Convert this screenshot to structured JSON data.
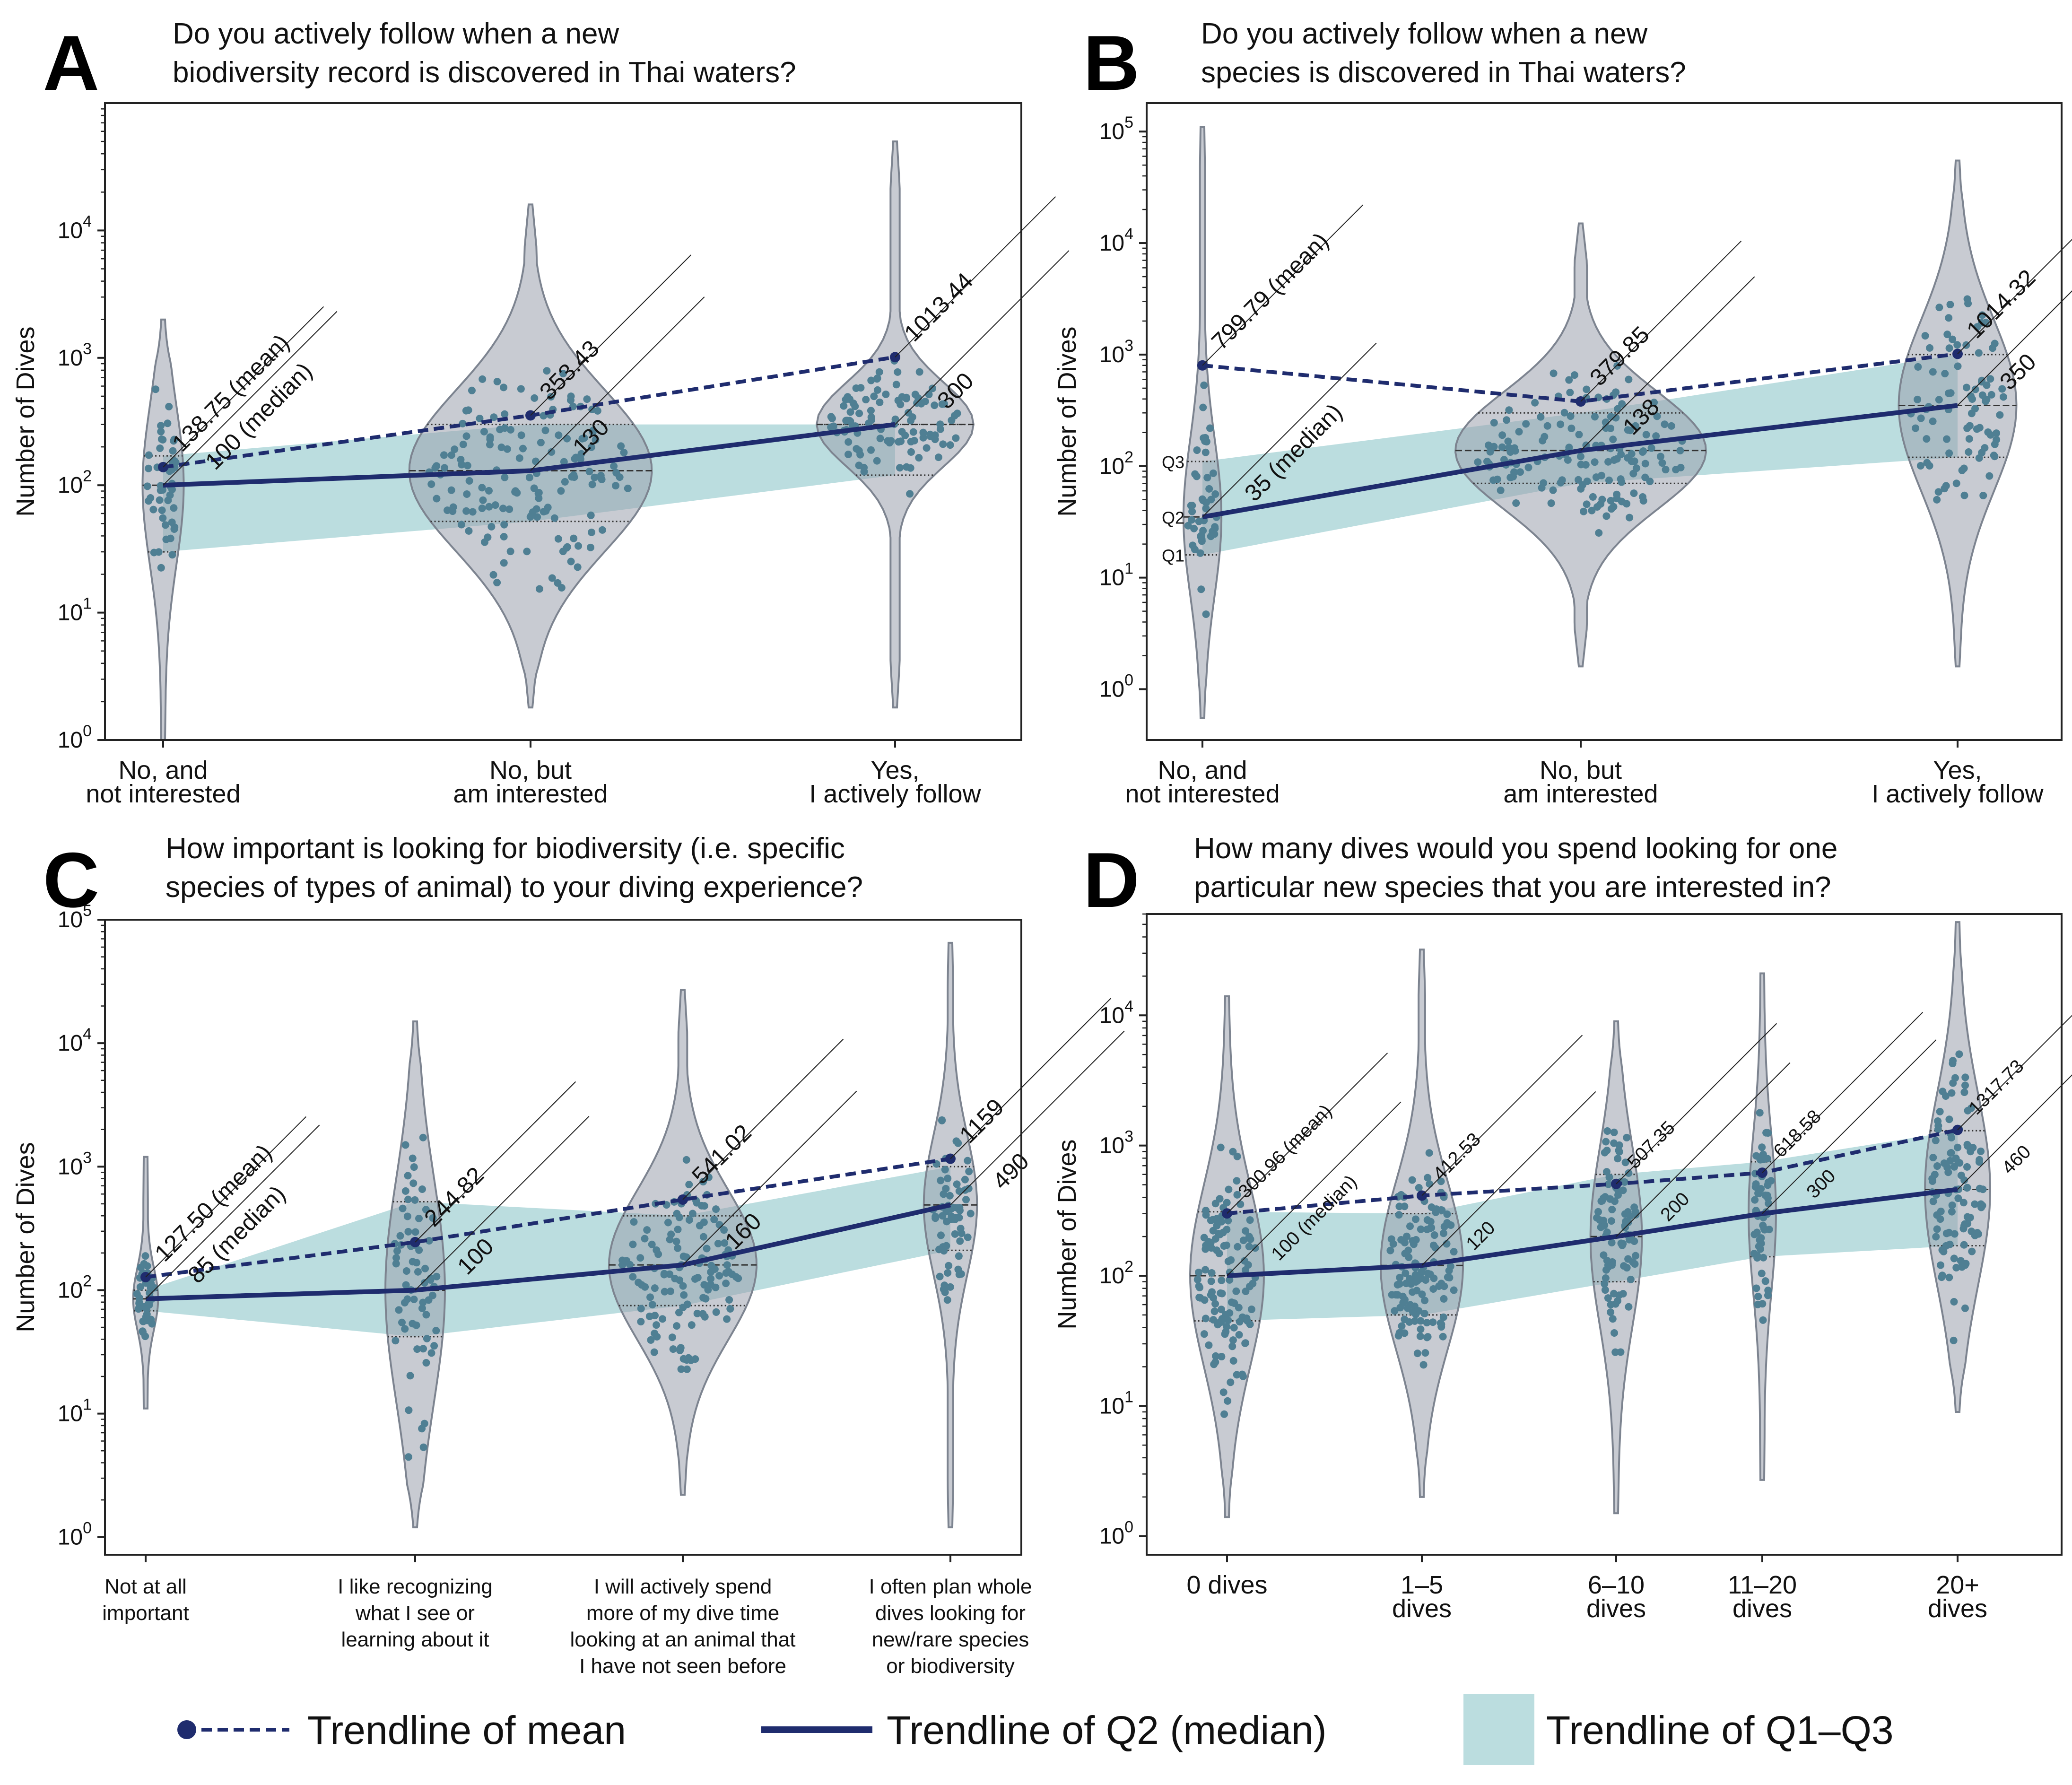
{
  "colors": {
    "violin_fill": "#9aa1ad",
    "violin_stroke": "#7d8490",
    "band_fill": "#a8d3d6",
    "dot": "#4f7f93",
    "outlier": "#111111",
    "mean_line": "#1f2c6e",
    "median_line": "#1f2c6e",
    "axis": "#222222"
  },
  "legend": {
    "mean": "Trendline of mean",
    "median": "Trendline of Q2 (median)",
    "q1q3": "Trendline of Q1–Q3"
  },
  "chart_data": [
    {
      "panel": "A",
      "type": "violin",
      "title_lines": [
        "Do you actively follow when a new",
        "biodiversity record is discovered in Thai waters?"
      ],
      "ylabel": "Number of Dives",
      "yscale": "log",
      "ylim": [
        1,
        100000
      ],
      "yticks": [
        "10^0",
        "10^1",
        "10^2",
        "10^3",
        "10^4"
      ],
      "categories": [
        [
          "No, and",
          "not interested"
        ],
        [
          "No, but",
          "am interested"
        ],
        [
          "Yes,",
          "I actively follow"
        ]
      ],
      "mean": [
        138.75,
        353.43,
        1013.44
      ],
      "median": [
        100,
        130,
        300
      ],
      "q1": [
        30,
        52,
        120
      ],
      "q3": [
        170,
        300,
        300
      ],
      "mean_labels": [
        "138.75 (mean)",
        "353.43",
        "1013.44"
      ],
      "median_labels": [
        "100 (median)",
        "130",
        "300"
      ],
      "range": [
        [
          1,
          2000
        ],
        [
          1.8,
          16000
        ],
        [
          1.8,
          50000
        ]
      ],
      "widths": [
        0.03,
        0.5,
        0.3
      ]
    },
    {
      "panel": "B",
      "type": "violin",
      "title_lines": [
        "Do you actively follow when a new",
        "species is discovered in Thai waters?"
      ],
      "ylabel": "Number of Dives",
      "yscale": "log",
      "ylim": [
        0.35,
        180000
      ],
      "yticks": [
        "10^0",
        "10^1",
        "10^2",
        "10^3",
        "10^4",
        "10^5"
      ],
      "categories": [
        [
          "No, and",
          "not interested"
        ],
        [
          "No, but",
          "am interested"
        ],
        [
          "Yes,",
          "I actively follow"
        ]
      ],
      "mean": [
        799.79,
        379.85,
        1014.32
      ],
      "median": [
        35,
        138,
        350
      ],
      "q1": [
        16,
        70,
        120
      ],
      "q3": [
        110,
        300,
        1000
      ],
      "mean_labels": [
        "799.79 (mean)",
        "379.85",
        "1014.32"
      ],
      "median_labels": [
        "35 (median)",
        "138",
        "350"
      ],
      "range": [
        [
          0.55,
          110000
        ],
        [
          1.6,
          15000
        ],
        [
          1.6,
          55000
        ]
      ],
      "widths": [
        0.02,
        0.5,
        0.2
      ],
      "quartile_marks": [
        "Q3",
        "Q2",
        "Q1"
      ]
    },
    {
      "panel": "C",
      "type": "violin",
      "title_lines": [
        "How important is looking for biodiversity (i.e. specific",
        "species of types of animal) to your diving experience?"
      ],
      "ylabel": "Number of Dives",
      "yscale": "log",
      "ylim": [
        0.72,
        100000
      ],
      "yticks": [
        "10^0",
        "10^1",
        "10^2",
        "10^3",
        "10^4",
        "10^5"
      ],
      "categories": [
        [
          "Not at all",
          "important"
        ],
        [
          "I like recognizing",
          "what I see or",
          "learning about it"
        ],
        [
          "I will actively spend",
          "more of my dive time",
          "looking at an animal that",
          "I have not seen before"
        ],
        [
          "I often plan whole",
          "dives looking for",
          "new/rare species",
          "or biodiversity"
        ]
      ],
      "mean": [
        127.5,
        244.82,
        541.02,
        1159
      ],
      "median": [
        85,
        100,
        160,
        490
      ],
      "q1": [
        68,
        42,
        75,
        210
      ],
      "q3": [
        100,
        520,
        400,
        1000
      ],
      "mean_labels": [
        "127.50 (mean)",
        "244.82",
        "541.02",
        "1159"
      ],
      "median_labels": [
        "85 (median)",
        "100",
        "160",
        "490"
      ],
      "range": [
        [
          11,
          1200
        ],
        [
          1.2,
          15000
        ],
        [
          2.2,
          27000
        ],
        [
          1.2,
          65000
        ]
      ],
      "widths": [
        0.01,
        0.12,
        0.4,
        0.1
      ]
    },
    {
      "panel": "D",
      "type": "violin",
      "title_lines": [
        "How many dives would you spend looking for one",
        "particular new species that you are interested in?"
      ],
      "ylabel": "Number of Dives",
      "yscale": "log",
      "ylim": [
        0.72,
        60000
      ],
      "yticks": [
        "10^0",
        "10^1",
        "10^2",
        "10^3",
        "10^4"
      ],
      "categories": [
        [
          "0 dives"
        ],
        [
          "1–5",
          "dives"
        ],
        [
          "6–10",
          "dives"
        ],
        [
          "11–20",
          "dives"
        ],
        [
          "20+",
          "dives"
        ]
      ],
      "mean": [
        300.96,
        412.53,
        507.35,
        618.58,
        1317.73
      ],
      "median": [
        100,
        120,
        200,
        300,
        460
      ],
      "q1": [
        45,
        50,
        90,
        140,
        170
      ],
      "q3": [
        310,
        300,
        600,
        750,
        1300
      ],
      "mean_labels": [
        "300.96 (mean)",
        "412.53",
        "507.35",
        "618.58",
        "1317.73"
      ],
      "median_labels": [
        "100 (median)",
        "120",
        "200",
        "300",
        "460"
      ],
      "range": [
        [
          1.4,
          14000
        ],
        [
          2,
          32000
        ],
        [
          1.5,
          9000
        ],
        [
          2.7,
          21000
        ],
        [
          9,
          52000
        ]
      ],
      "widths": [
        0.35,
        0.4,
        0.22,
        0.08,
        0.3
      ]
    }
  ]
}
